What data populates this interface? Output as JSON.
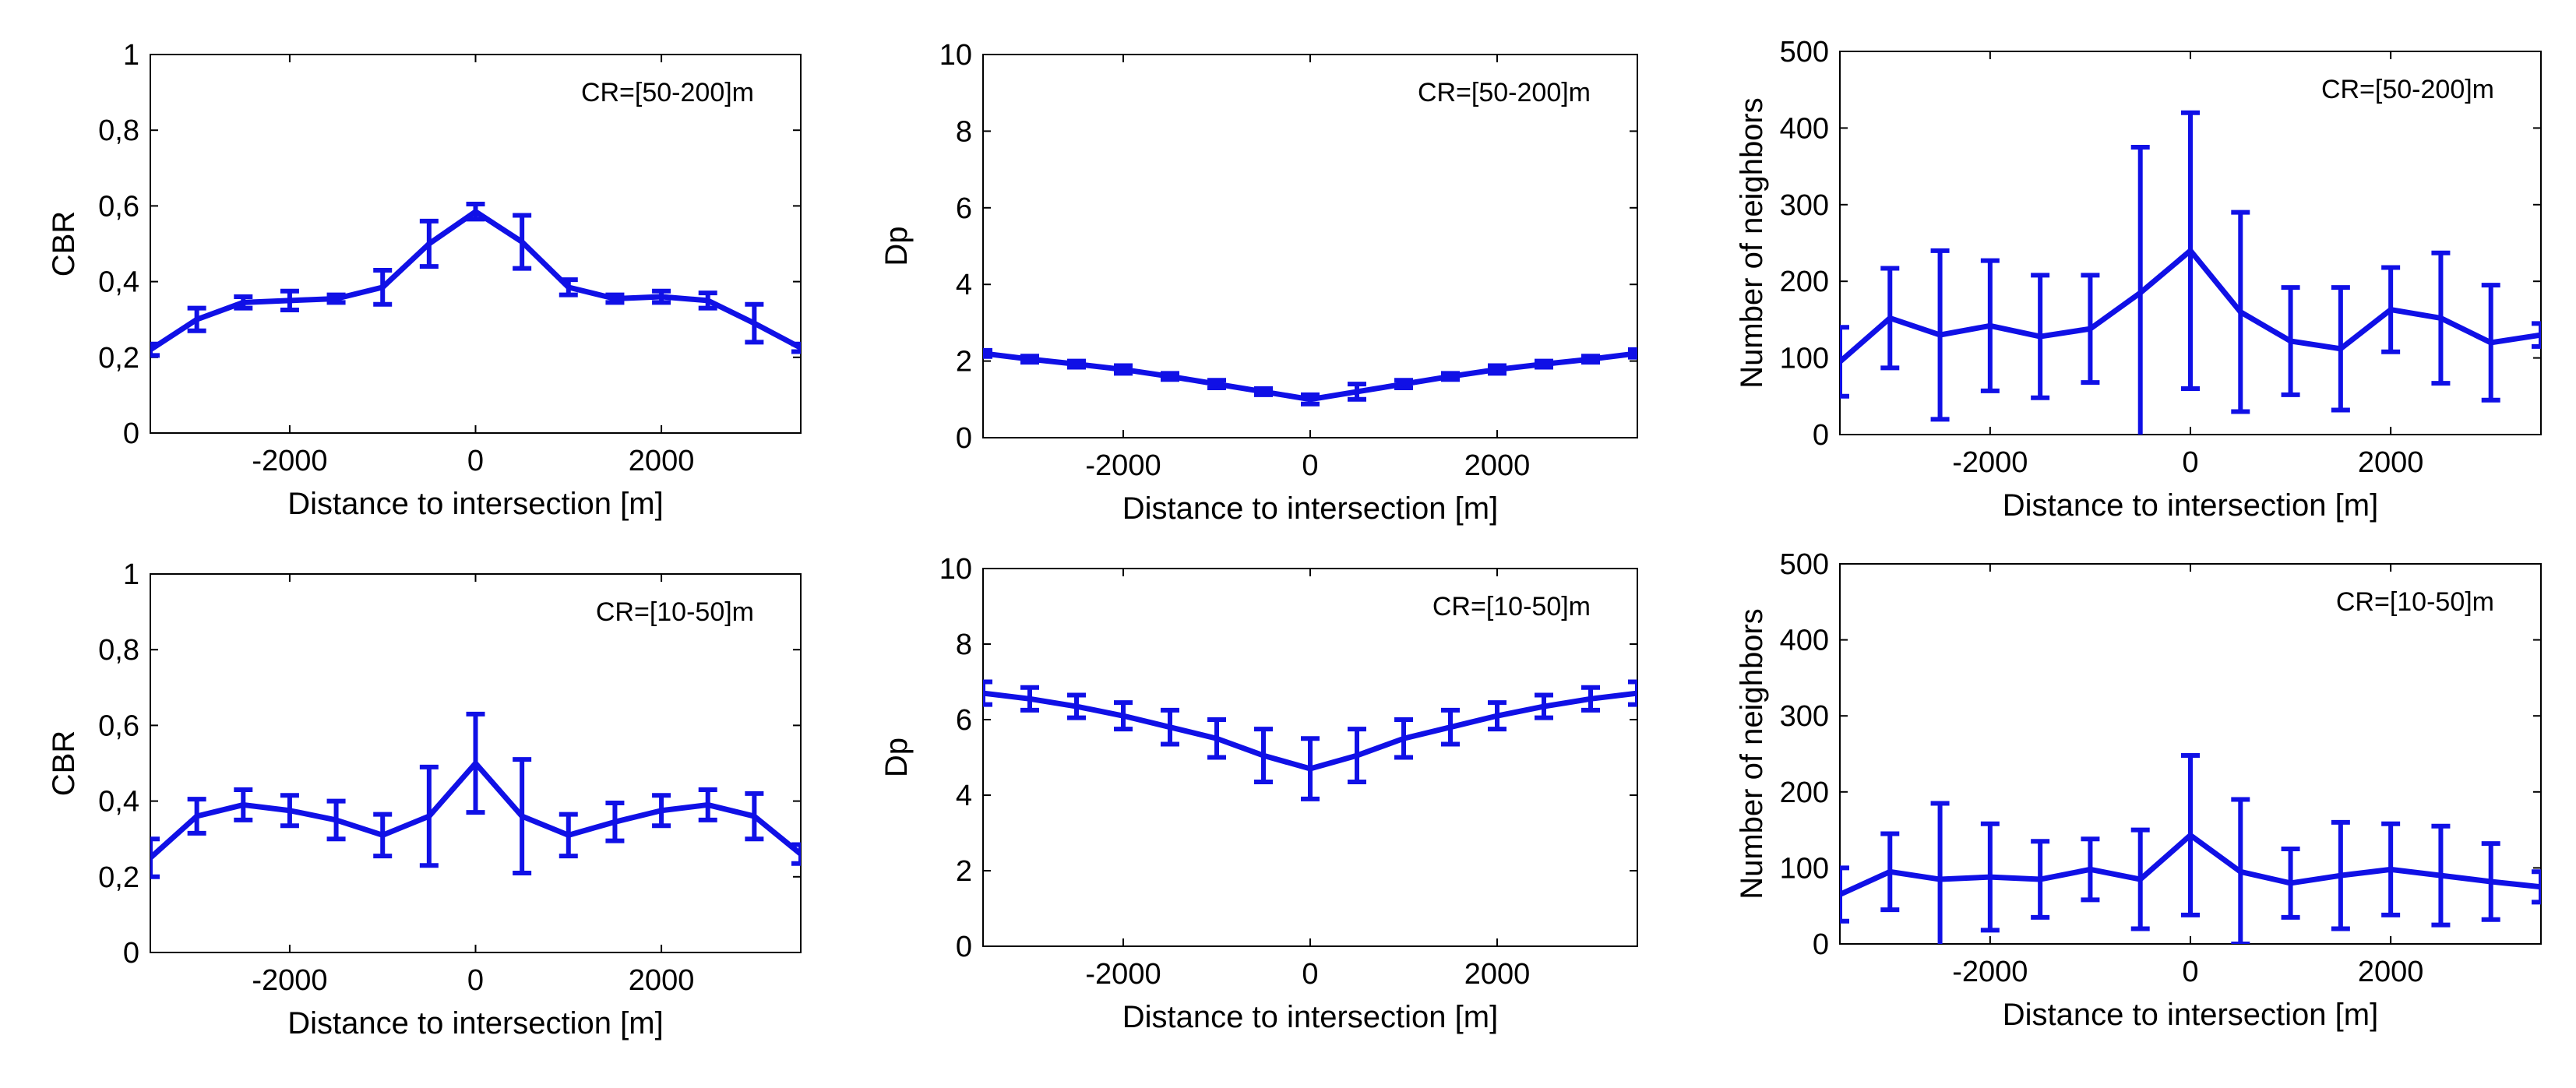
{
  "colors": {
    "series": "#1010e6",
    "axis": "#000000",
    "background": "#ffffff"
  },
  "chart_data": [
    {
      "type": "line",
      "row": 0,
      "col": 0,
      "annotation": "CR=[50-200]m",
      "xlabel": "Distance to intersection [m]",
      "ylabel": "CBR",
      "xlim": [
        -3500,
        3500
      ],
      "ylim": [
        0,
        1
      ],
      "xticks": [
        -2000,
        0,
        2000
      ],
      "xtick_labels": [
        "-2000",
        "0",
        "2000"
      ],
      "yticks": [
        0,
        0.2,
        0.4,
        0.6,
        0.8,
        1
      ],
      "ytick_labels": [
        "0",
        "0,2",
        "0,4",
        "0,6",
        "0,8",
        "1"
      ],
      "grid": false,
      "series": [
        {
          "x": [
            -3500,
            -3000,
            -2500,
            -2000,
            -1500,
            -1000,
            -500,
            0,
            500,
            1000,
            1500,
            2000,
            2500,
            3000,
            3500
          ],
          "y": [
            0.22,
            0.3,
            0.345,
            0.35,
            0.355,
            0.385,
            0.5,
            0.585,
            0.505,
            0.385,
            0.355,
            0.36,
            0.35,
            0.29,
            0.225
          ],
          "err": [
            0.015,
            0.03,
            0.015,
            0.025,
            0.01,
            0.045,
            0.06,
            0.02,
            0.07,
            0.02,
            0.01,
            0.015,
            0.02,
            0.05,
            0.01
          ]
        }
      ]
    },
    {
      "type": "line",
      "row": 0,
      "col": 1,
      "annotation": "CR=[50-200]m",
      "xlabel": "Distance to intersection [m]",
      "ylabel": "Dp",
      "xlim": [
        -3500,
        3500
      ],
      "ylim": [
        0,
        10
      ],
      "xticks": [
        -2000,
        0,
        2000
      ],
      "xtick_labels": [
        "-2000",
        "0",
        "2000"
      ],
      "yticks": [
        0,
        2,
        4,
        6,
        8,
        10
      ],
      "ytick_labels": [
        "0",
        "2",
        "4",
        "6",
        "8",
        "10"
      ],
      "grid": false,
      "series": [
        {
          "x": [
            -3500,
            -3000,
            -2500,
            -2000,
            -1500,
            -1000,
            -500,
            0,
            500,
            1000,
            1500,
            2000,
            2500,
            3000,
            3500
          ],
          "y": [
            2.2,
            2.05,
            1.92,
            1.78,
            1.6,
            1.4,
            1.2,
            1.0,
            1.2,
            1.4,
            1.6,
            1.78,
            1.92,
            2.05,
            2.2
          ],
          "err": [
            0.08,
            0.08,
            0.08,
            0.1,
            0.08,
            0.1,
            0.08,
            0.12,
            0.2,
            0.1,
            0.08,
            0.1,
            0.08,
            0.08,
            0.1
          ]
        }
      ]
    },
    {
      "type": "line",
      "row": 0,
      "col": 2,
      "annotation": "CR=[50-200]m",
      "xlabel": "Distance to intersection [m]",
      "ylabel": "Number of neighbors",
      "xlim": [
        -3500,
        3500
      ],
      "ylim": [
        0,
        500
      ],
      "xticks": [
        -2000,
        0,
        2000
      ],
      "xtick_labels": [
        "-2000",
        "0",
        "2000"
      ],
      "yticks": [
        0,
        100,
        200,
        300,
        400,
        500
      ],
      "ytick_labels": [
        "0",
        "100",
        "200",
        "300",
        "400",
        "500"
      ],
      "grid": false,
      "series": [
        {
          "x": [
            -3500,
            -3000,
            -2500,
            -2000,
            -1500,
            -1000,
            -500,
            0,
            500,
            1000,
            1500,
            2000,
            2500,
            3000,
            3500
          ],
          "y": [
            95,
            152,
            130,
            142,
            128,
            138,
            185,
            240,
            160,
            122,
            112,
            163,
            152,
            120,
            130
          ],
          "err": [
            45,
            65,
            110,
            85,
            80,
            70,
            190,
            180,
            130,
            70,
            80,
            55,
            85,
            75,
            15
          ]
        }
      ]
    },
    {
      "type": "line",
      "row": 1,
      "col": 0,
      "annotation": "CR=[10-50]m",
      "xlabel": "Distance to intersection [m]",
      "ylabel": "CBR",
      "xlim": [
        -3500,
        3500
      ],
      "ylim": [
        0,
        1
      ],
      "xticks": [
        -2000,
        0,
        2000
      ],
      "xtick_labels": [
        "-2000",
        "0",
        "2000"
      ],
      "yticks": [
        0,
        0.2,
        0.4,
        0.6,
        0.8,
        1
      ],
      "ytick_labels": [
        "0",
        "0,2",
        "0,4",
        "0,6",
        "0,8",
        "1"
      ],
      "grid": false,
      "series": [
        {
          "x": [
            -3500,
            -3000,
            -2500,
            -2000,
            -1500,
            -1000,
            -500,
            0,
            500,
            1000,
            1500,
            2000,
            2500,
            3000,
            3500
          ],
          "y": [
            0.25,
            0.36,
            0.39,
            0.375,
            0.35,
            0.31,
            0.36,
            0.5,
            0.36,
            0.31,
            0.345,
            0.375,
            0.39,
            0.36,
            0.26
          ],
          "err": [
            0.05,
            0.045,
            0.04,
            0.04,
            0.05,
            0.055,
            0.13,
            0.13,
            0.15,
            0.055,
            0.05,
            0.04,
            0.04,
            0.06,
            0.025
          ]
        }
      ]
    },
    {
      "type": "line",
      "row": 1,
      "col": 1,
      "annotation": "CR=[10-50]m",
      "xlabel": "Distance to intersection [m]",
      "ylabel": "Dp",
      "xlim": [
        -3500,
        3500
      ],
      "ylim": [
        0,
        10
      ],
      "xticks": [
        -2000,
        0,
        2000
      ],
      "xtick_labels": [
        "-2000",
        "0",
        "2000"
      ],
      "yticks": [
        0,
        2,
        4,
        6,
        8,
        10
      ],
      "ytick_labels": [
        "0",
        "2",
        "4",
        "6",
        "8",
        "10"
      ],
      "grid": false,
      "series": [
        {
          "x": [
            -3500,
            -3000,
            -2500,
            -2000,
            -1500,
            -1000,
            -500,
            0,
            500,
            1000,
            1500,
            2000,
            2500,
            3000,
            3500
          ],
          "y": [
            6.7,
            6.55,
            6.35,
            6.1,
            5.8,
            5.5,
            5.05,
            4.7,
            5.05,
            5.5,
            5.8,
            6.1,
            6.35,
            6.55,
            6.7
          ],
          "err": [
            0.3,
            0.3,
            0.3,
            0.35,
            0.45,
            0.5,
            0.7,
            0.8,
            0.7,
            0.5,
            0.45,
            0.35,
            0.3,
            0.3,
            0.3
          ]
        }
      ]
    },
    {
      "type": "line",
      "row": 1,
      "col": 2,
      "annotation": "CR=[10-50]m",
      "xlabel": "Distance to intersection [m]",
      "ylabel": "Number of neighbors",
      "xlim": [
        -3500,
        3500
      ],
      "ylim": [
        0,
        500
      ],
      "xticks": [
        -2000,
        0,
        2000
      ],
      "xtick_labels": [
        "-2000",
        "0",
        "2000"
      ],
      "yticks": [
        0,
        100,
        200,
        300,
        400,
        500
      ],
      "ytick_labels": [
        "0",
        "100",
        "200",
        "300",
        "400",
        "500"
      ],
      "grid": false,
      "series": [
        {
          "x": [
            -3500,
            -3000,
            -2500,
            -2000,
            -1500,
            -1000,
            -500,
            0,
            500,
            1000,
            1500,
            2000,
            2500,
            3000,
            3500
          ],
          "y": [
            65,
            95,
            85,
            88,
            85,
            98,
            85,
            143,
            95,
            80,
            90,
            98,
            90,
            82,
            75
          ],
          "err": [
            35,
            50,
            100,
            70,
            50,
            40,
            65,
            105,
            95,
            45,
            70,
            60,
            65,
            50,
            20
          ]
        }
      ]
    }
  ]
}
